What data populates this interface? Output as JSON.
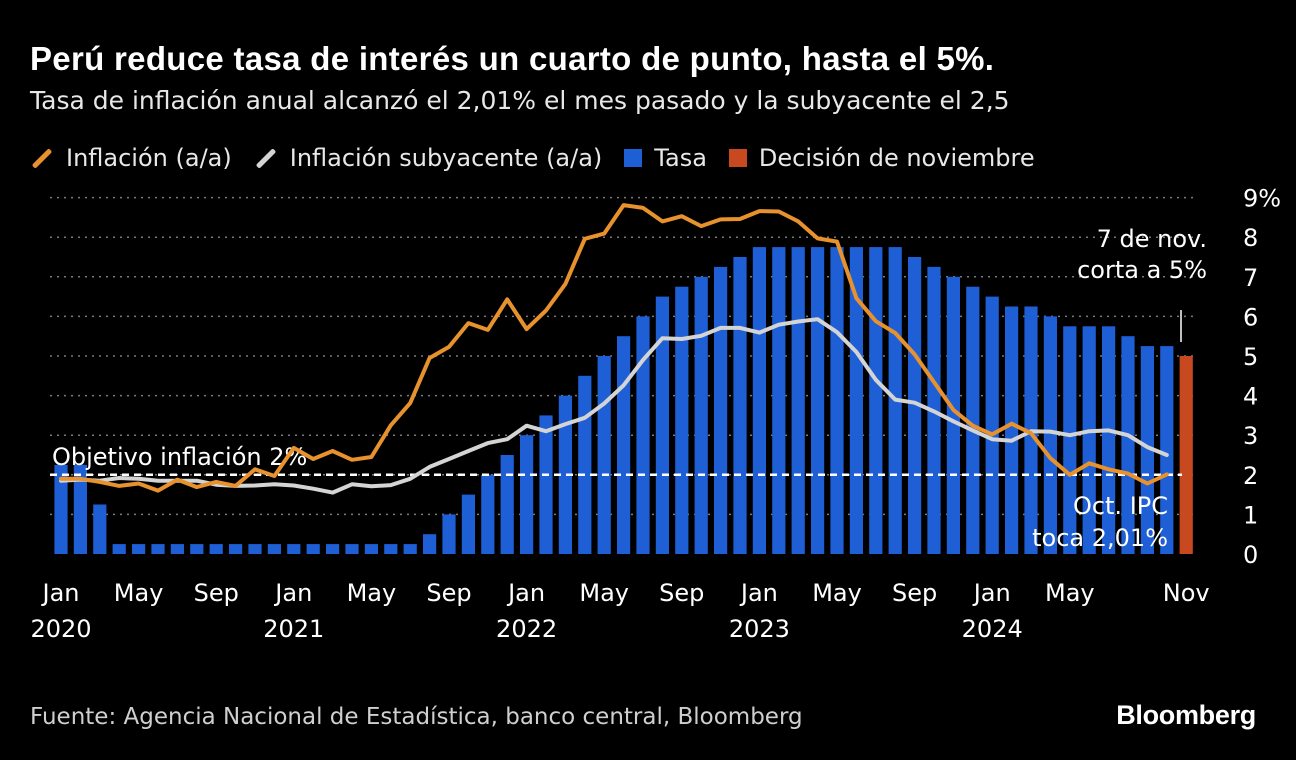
{
  "title": "Perú reduce tasa de interés un cuarto de punto, hasta el 5%.",
  "subtitle": "Tasa de inflación anual alcanzó el 2,01% el mes pasado y la subyacente el 2,5",
  "legend": [
    {
      "label": "Inflación (a/a)",
      "kind": "line",
      "color": "#e8922e"
    },
    {
      "label": "Inflación subyacente (a/a)",
      "kind": "line",
      "color": "#d4d4d4"
    },
    {
      "label": "Tasa",
      "kind": "box",
      "color": "#1f5fd6"
    },
    {
      "label": "Decisión de noviembre",
      "kind": "box",
      "color": "#c8491f"
    }
  ],
  "colors": {
    "inflation": "#e8922e",
    "core": "#d4d4d4",
    "rate": "#1f5fd6",
    "decision": "#c8491f",
    "grid": "#7a7a7a"
  },
  "source": "Fuente: Agencia Nacional de Estadística, banco central, Bloomberg",
  "logo": "Bloomberg",
  "chart_data": {
    "type": "bar+line",
    "ylim": [
      0,
      9
    ],
    "yticks": [
      "0",
      "1",
      "2",
      "3",
      "4",
      "5",
      "6",
      "7",
      "8",
      "9%"
    ],
    "x_ticks": [
      {
        "index": 0,
        "label": "Jan",
        "year": "2020"
      },
      {
        "index": 4,
        "label": "May",
        "year": ""
      },
      {
        "index": 8,
        "label": "Sep",
        "year": ""
      },
      {
        "index": 12,
        "label": "Jan",
        "year": "2021"
      },
      {
        "index": 16,
        "label": "May",
        "year": ""
      },
      {
        "index": 20,
        "label": "Sep",
        "year": ""
      },
      {
        "index": 24,
        "label": "Jan",
        "year": "2022"
      },
      {
        "index": 28,
        "label": "May",
        "year": ""
      },
      {
        "index": 32,
        "label": "Sep",
        "year": ""
      },
      {
        "index": 36,
        "label": "Jan",
        "year": "2023"
      },
      {
        "index": 40,
        "label": "May",
        "year": ""
      },
      {
        "index": 44,
        "label": "Sep",
        "year": ""
      },
      {
        "index": 48,
        "label": "Jan",
        "year": "2024"
      },
      {
        "index": 52,
        "label": "May",
        "year": ""
      },
      {
        "index": 58,
        "label": "Nov",
        "year": ""
      }
    ],
    "rate": [
      2.25,
      2.25,
      1.25,
      0.25,
      0.25,
      0.25,
      0.25,
      0.25,
      0.25,
      0.25,
      0.25,
      0.25,
      0.25,
      0.25,
      0.25,
      0.25,
      0.25,
      0.25,
      0.25,
      0.5,
      1.0,
      1.5,
      2.0,
      2.5,
      3.0,
      3.5,
      4.0,
      4.5,
      5.0,
      5.5,
      6.0,
      6.5,
      6.75,
      7.0,
      7.25,
      7.5,
      7.75,
      7.75,
      7.75,
      7.75,
      7.75,
      7.75,
      7.75,
      7.75,
      7.5,
      7.25,
      7.0,
      6.75,
      6.5,
      6.25,
      6.25,
      6.0,
      5.75,
      5.75,
      5.75,
      5.5,
      5.25,
      5.25
    ],
    "decision": {
      "index": 58,
      "value": 5.0
    },
    "inflation": [
      1.9,
      1.9,
      1.82,
      1.72,
      1.78,
      1.6,
      1.88,
      1.69,
      1.82,
      1.72,
      2.14,
      1.97,
      2.68,
      2.4,
      2.6,
      2.38,
      2.45,
      3.25,
      3.81,
      4.95,
      5.23,
      5.83,
      5.66,
      6.43,
      5.68,
      6.15,
      6.82,
      7.96,
      8.09,
      8.81,
      8.74,
      8.4,
      8.53,
      8.28,
      8.45,
      8.46,
      8.66,
      8.65,
      8.4,
      7.97,
      7.89,
      6.46,
      5.88,
      5.58,
      5.04,
      4.34,
      3.64,
      3.24,
      3.02,
      3.29,
      3.05,
      2.42,
      2.0,
      2.29,
      2.14,
      2.03,
      1.78,
      2.01
    ],
    "core": [
      1.85,
      1.88,
      1.85,
      1.92,
      1.9,
      1.85,
      1.85,
      1.85,
      1.75,
      1.72,
      1.73,
      1.76,
      1.73,
      1.65,
      1.55,
      1.76,
      1.71,
      1.74,
      1.9,
      2.2,
      2.4,
      2.6,
      2.8,
      2.9,
      3.24,
      3.1,
      3.28,
      3.44,
      3.8,
      4.26,
      4.9,
      5.45,
      5.43,
      5.51,
      5.71,
      5.71,
      5.59,
      5.79,
      5.87,
      5.93,
      5.6,
      5.1,
      4.4,
      3.9,
      3.82,
      3.6,
      3.35,
      3.12,
      2.9,
      2.86,
      3.1,
      3.09,
      3.0,
      3.1,
      3.12,
      3.0,
      2.7,
      2.5
    ],
    "target": {
      "value": 2,
      "label": "Objetivo inflación 2%"
    },
    "annotations": [
      {
        "text": "7 de nov.",
        "text2": "corta a 5%"
      },
      {
        "text": "Oct. IPC",
        "text2": "toca 2,01%"
      }
    ]
  }
}
